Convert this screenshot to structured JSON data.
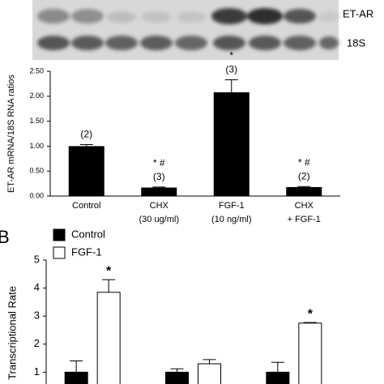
{
  "blot": {
    "labels": [
      "ET-AR",
      "18S"
    ]
  },
  "chart_data": [
    {
      "type": "bar",
      "ylabel": "ET-AR mRNA/18S RNA ratios",
      "categories": [
        [
          "Control"
        ],
        [
          "CHX",
          "(30 ug/ml)"
        ],
        [
          "FGF-1",
          "(10 ng/ml)"
        ],
        [
          "CHX",
          "+ FGF-1"
        ]
      ],
      "values": [
        1.0,
        0.17,
        2.08,
        0.18
      ],
      "errors": [
        0.03,
        0.01,
        0.25,
        0.01
      ],
      "annotations": [
        [
          "(2)"
        ],
        [
          "* #",
          "(3)"
        ],
        [
          "*",
          "(3)"
        ],
        [
          "* #",
          "(2)"
        ]
      ],
      "color": "#000000",
      "ylim": [
        0,
        2.5
      ],
      "yticks": [
        {
          "value": 0,
          "label": "0.00"
        },
        {
          "value": 0.5,
          "label": "0.50"
        },
        {
          "value": 1,
          "label": "1.00"
        },
        {
          "value": 1.5,
          "label": "1.50"
        },
        {
          "value": 2,
          "label": "2.00"
        },
        {
          "value": 2.5,
          "label": "2.50"
        }
      ]
    },
    {
      "type": "grouped_bar",
      "panel_label": "B",
      "ylabel": "Transcriptional Rate",
      "categories": [
        null,
        null,
        null
      ],
      "series": [
        {
          "name": "Control",
          "color": "#000000",
          "values": [
            1.0,
            1.0,
            1.0
          ],
          "errors": [
            0.4,
            0.12,
            0.35
          ]
        },
        {
          "name": "FGF-1",
          "color": "#ffffff",
          "values": [
            3.85,
            1.3,
            2.75
          ],
          "errors": [
            0.45,
            0.15,
            0.02
          ],
          "annotations": [
            "*",
            null,
            "*"
          ]
        }
      ],
      "ylim": [
        0,
        5
      ],
      "yticks": [
        1,
        2,
        3,
        4,
        5
      ]
    }
  ]
}
